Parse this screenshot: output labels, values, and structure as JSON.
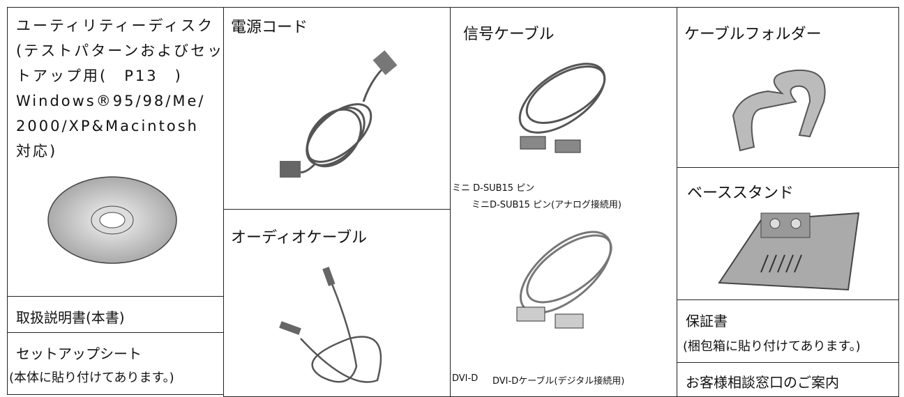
{
  "disk": {
    "lines": [
      "ユーティリティーディスク",
      "(テストパターンおよびセッ",
      "トアップ用(　P13　)",
      "Windows®95/98/Me/",
      "2000/XP&Macintosh",
      "対応)"
    ]
  },
  "manual": {
    "title": "取扱説明書(本書)"
  },
  "setup_sheet": {
    "title": "セットアップシート",
    "note": "(本体に貼り付けてあります。)"
  },
  "power_cord": {
    "title": "電源コード"
  },
  "audio_cable": {
    "title": "オーディオケーブル"
  },
  "signal_cable": {
    "title": "信号ケーブル",
    "dsub_label": "ミニ D-SUB15 ピン",
    "dsub_caption": "ミニD-SUB15 ピン(アナログ接続用)",
    "dvi_label": "DVI-D",
    "dvi_caption": "DVI-Dケーブル(デジタル接続用)"
  },
  "cable_holder": {
    "title": "ケーブルフォルダー"
  },
  "base_stand": {
    "title": "ベーススタンド"
  },
  "warranty": {
    "title": "保証書",
    "note": "(梱包箱に貼り付けてあります。)"
  },
  "support": {
    "title": "お客様相談窓口のご案内"
  }
}
